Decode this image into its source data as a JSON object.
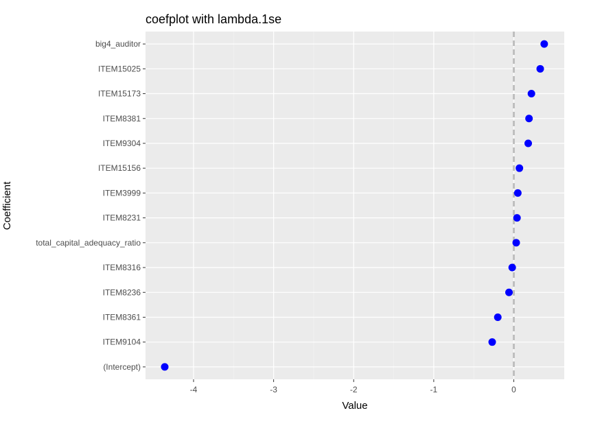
{
  "chart_data": {
    "type": "scatter",
    "title": "coefplot with lambda.1se",
    "xlabel": "Value",
    "ylabel": "Coefficient",
    "xlim": [
      -4.6,
      0.63
    ],
    "x_ticks": [
      -4,
      -3,
      -2,
      -1,
      0
    ],
    "x_tick_labels": [
      "-4",
      "-3",
      "-2",
      "-1",
      "0"
    ],
    "reference_line": {
      "x": 0,
      "style": "dashed",
      "color": "#bebebe"
    },
    "grid": true,
    "background": "#ebebeb",
    "point_color": "#0000ff",
    "categories": [
      "big4_auditor",
      "ITEM15025",
      "ITEM15173",
      "ITEM8381",
      "ITEM9304",
      "ITEM15156",
      "ITEM3999",
      "ITEM8231",
      "total_capital_adequacy_ratio",
      "ITEM8316",
      "ITEM8236",
      "ITEM8361",
      "ITEM9104",
      "(Intercept)"
    ],
    "values": [
      0.38,
      0.33,
      0.22,
      0.19,
      0.18,
      0.07,
      0.05,
      0.04,
      0.03,
      -0.02,
      -0.06,
      -0.2,
      -0.27,
      -4.36
    ]
  }
}
